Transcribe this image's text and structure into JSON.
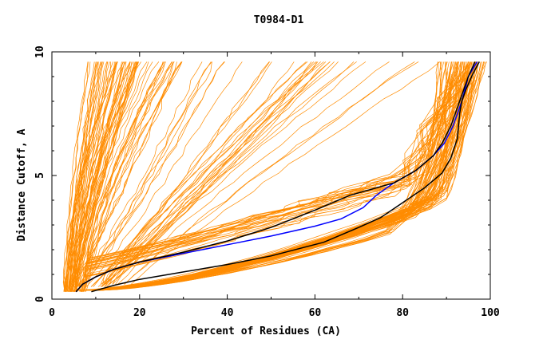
{
  "chart_data": {
    "type": "line",
    "title": "T0984-D1",
    "xlabel": "Percent of Residues (CA)",
    "ylabel": "Distance Cutoff, A",
    "xlim": [
      0,
      100
    ],
    "ylim": [
      0,
      10
    ],
    "x_ticks": [
      "0",
      "20",
      "40",
      "60",
      "80",
      "100"
    ],
    "y_ticks": [
      "0",
      "5",
      "10"
    ],
    "grid": false,
    "colors": {
      "background_models": "#ff8c00",
      "highlight_blue": "#0000ff",
      "highlight_black": "#000000"
    },
    "series": [
      {
        "color": "#0000ff",
        "x": [
          5.5,
          7,
          10,
          14,
          20,
          30,
          40,
          50,
          60,
          66,
          71,
          74,
          78,
          83,
          87,
          89.5,
          91.5,
          93.5,
          95,
          97
        ],
        "y": [
          0.3,
          0.6,
          0.9,
          1.2,
          1.5,
          1.85,
          2.2,
          2.55,
          2.95,
          3.25,
          3.7,
          4.2,
          4.7,
          5.2,
          5.8,
          6.3,
          7,
          8,
          9,
          9.6
        ]
      },
      {
        "color": "#000000",
        "x": [
          5.5,
          7,
          10,
          14,
          20,
          30,
          40,
          50,
          60,
          68,
          72,
          78,
          83,
          87,
          89,
          91,
          93,
          95,
          96.5
        ],
        "y": [
          0.3,
          0.6,
          0.9,
          1.2,
          1.5,
          1.9,
          2.35,
          2.9,
          3.6,
          4.2,
          4.4,
          4.7,
          5.2,
          5.8,
          6.3,
          7,
          8,
          9,
          9.6
        ]
      },
      {
        "color": "#000000",
        "x": [
          9,
          14,
          20,
          30,
          40,
          50,
          62,
          70,
          75,
          80,
          85,
          89,
          91,
          92.5,
          93,
          93.5,
          94.5,
          96,
          97.5
        ],
        "y": [
          0.3,
          0.55,
          0.8,
          1.1,
          1.4,
          1.75,
          2.3,
          2.9,
          3.3,
          3.9,
          4.5,
          5.1,
          5.7,
          6.5,
          7.5,
          8,
          8.5,
          9.1,
          9.6
        ]
      }
    ]
  }
}
